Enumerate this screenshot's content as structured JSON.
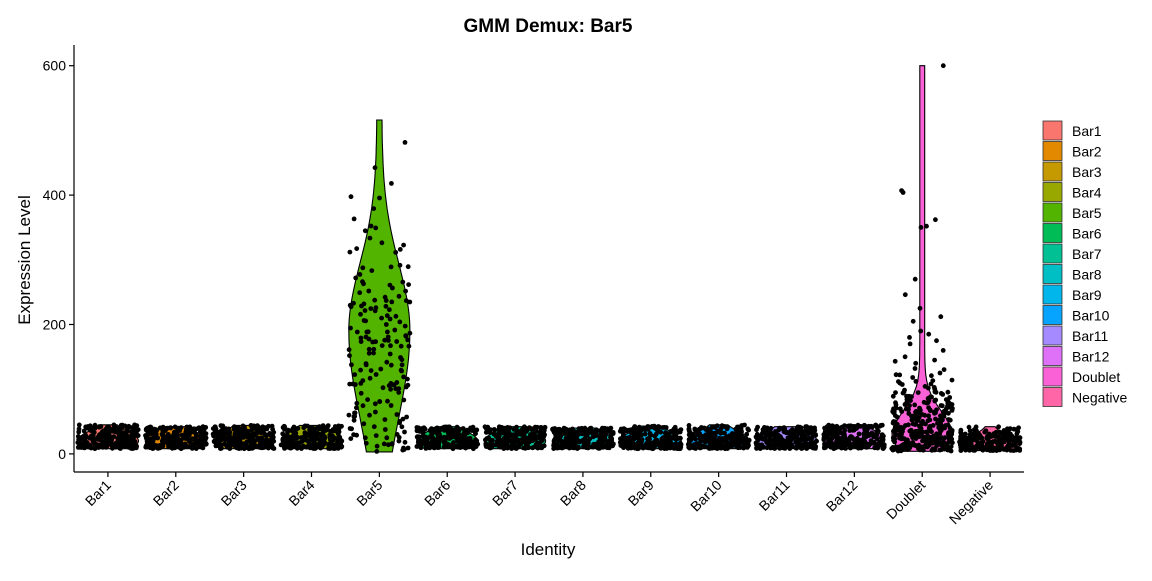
{
  "chart_data": {
    "type": "violin",
    "title": "GMM Demux: Bar5",
    "xlabel": "Identity",
    "ylabel": "Expression Level",
    "ylim": [
      -28,
      632
    ],
    "yticks": [
      0,
      200,
      400,
      600
    ],
    "grid": false,
    "legend_position": "right",
    "categories": [
      "Bar1",
      "Bar2",
      "Bar3",
      "Bar4",
      "Bar5",
      "Bar6",
      "Bar7",
      "Bar8",
      "Bar9",
      "Bar10",
      "Bar11",
      "Bar12",
      "Doublet",
      "Negative"
    ],
    "series": [
      {
        "name": "Bar1",
        "color": "#F8766D",
        "median": 22,
        "q_low": 12,
        "q_high": 32,
        "min": 8,
        "max": 45,
        "peak_value": 20,
        "max_halfwidth_frac": 0.45,
        "outliers": []
      },
      {
        "name": "Bar2",
        "color": "#E38900",
        "median": 22,
        "q_low": 12,
        "q_high": 32,
        "min": 8,
        "max": 42,
        "peak_value": 20,
        "max_halfwidth_frac": 0.45,
        "outliers": []
      },
      {
        "name": "Bar3",
        "color": "#C49A00",
        "median": 22,
        "q_low": 12,
        "q_high": 32,
        "min": 8,
        "max": 44,
        "peak_value": 20,
        "max_halfwidth_frac": 0.45,
        "outliers": []
      },
      {
        "name": "Bar4",
        "color": "#99A800",
        "median": 24,
        "q_low": 13,
        "q_high": 34,
        "min": 8,
        "max": 44,
        "peak_value": 22,
        "max_halfwidth_frac": 0.45,
        "outliers": []
      },
      {
        "name": "Bar5",
        "color": "#53B400",
        "median": 170,
        "q_low": 80,
        "q_high": 240,
        "min": 3,
        "max": 516,
        "peak_value": 190,
        "max_halfwidth_frac": 0.45,
        "outliers": []
      },
      {
        "name": "Bar6",
        "color": "#00BC56",
        "median": 22,
        "q_low": 12,
        "q_high": 32,
        "min": 8,
        "max": 42,
        "peak_value": 20,
        "max_halfwidth_frac": 0.45,
        "outliers": []
      },
      {
        "name": "Bar7",
        "color": "#00C094",
        "median": 22,
        "q_low": 12,
        "q_high": 32,
        "min": 8,
        "max": 42,
        "peak_value": 20,
        "max_halfwidth_frac": 0.45,
        "outliers": []
      },
      {
        "name": "Bar8",
        "color": "#00BFC4",
        "median": 22,
        "q_low": 12,
        "q_high": 32,
        "min": 8,
        "max": 40,
        "peak_value": 20,
        "max_halfwidth_frac": 0.45,
        "outliers": []
      },
      {
        "name": "Bar9",
        "color": "#00B6EB",
        "median": 22,
        "q_low": 12,
        "q_high": 32,
        "min": 8,
        "max": 43,
        "peak_value": 20,
        "max_halfwidth_frac": 0.45,
        "outliers": []
      },
      {
        "name": "Bar10",
        "color": "#06A4FF",
        "median": 22,
        "q_low": 12,
        "q_high": 32,
        "min": 8,
        "max": 45,
        "peak_value": 20,
        "max_halfwidth_frac": 0.45,
        "outliers": []
      },
      {
        "name": "Bar11",
        "color": "#A58AFF",
        "median": 22,
        "q_low": 12,
        "q_high": 32,
        "min": 8,
        "max": 42,
        "peak_value": 20,
        "max_halfwidth_frac": 0.45,
        "outliers": []
      },
      {
        "name": "Bar12",
        "color": "#DF70F8",
        "median": 24,
        "q_low": 13,
        "q_high": 34,
        "min": 8,
        "max": 45,
        "peak_value": 22,
        "max_halfwidth_frac": 0.45,
        "outliers": []
      },
      {
        "name": "Doublet",
        "color": "#FB61D7",
        "median": 35,
        "q_low": 18,
        "q_high": 60,
        "min": 4,
        "max": 600,
        "peak_value": 28,
        "max_halfwidth_frac": 0.45,
        "outliers": [
          404,
          407,
          352,
          350,
          362,
          270,
          246,
          225,
          212,
          205,
          190,
          185,
          180,
          175,
          170,
          160,
          150,
          145,
          140,
          132,
          125,
          118,
          112,
          108,
          100,
          96,
          92,
          88,
          84,
          600
        ]
      },
      {
        "name": "Negative",
        "color": "#FF66A8",
        "median": 18,
        "q_low": 10,
        "q_high": 26,
        "min": 5,
        "max": 42,
        "peak_value": 16,
        "max_halfwidth_frac": 0.45,
        "outliers": []
      }
    ]
  }
}
